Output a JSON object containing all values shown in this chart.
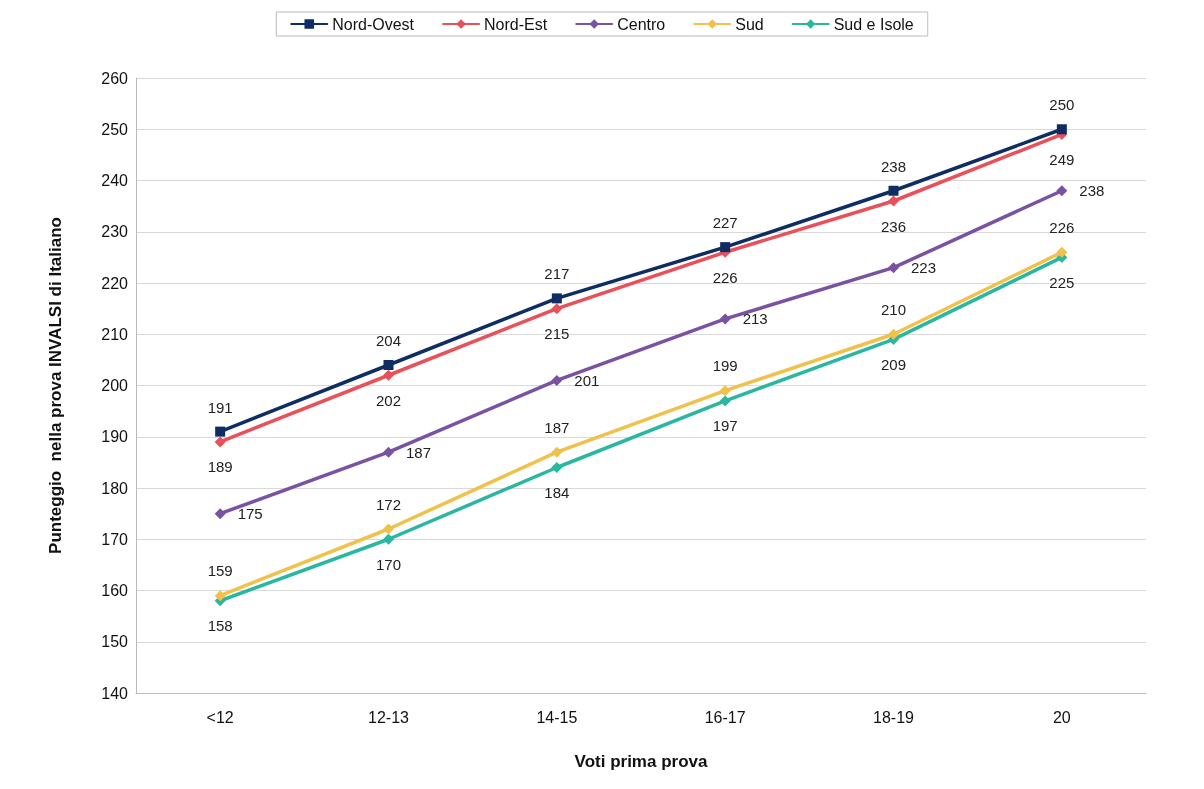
{
  "chart_data": {
    "type": "line",
    "xlabel": "Voti prima prova",
    "ylabel": "Punteggio  nella prova INVALSI di Italiano",
    "categories": [
      "<12",
      "12-13",
      "14-15",
      "16-17",
      "18-19",
      "20"
    ],
    "series": [
      {
        "name": "Nord-Ovest",
        "color": "#0e2d62",
        "marker": "square",
        "values": [
          191,
          204,
          217,
          227,
          238,
          250
        ]
      },
      {
        "name": "Nord-Est",
        "color": "#e8505b",
        "marker": "diamond",
        "values": [
          189,
          202,
          215,
          226,
          236,
          249
        ]
      },
      {
        "name": "Centro",
        "color": "#7a52a2",
        "marker": "diamond",
        "values": [
          175,
          187,
          201,
          213,
          223,
          238
        ]
      },
      {
        "name": "Sud",
        "color": "#f0c14b",
        "marker": "diamond",
        "values": [
          159,
          172,
          187,
          199,
          210,
          226
        ]
      },
      {
        "name": "Sud e Isole",
        "color": "#2ab7a2",
        "marker": "diamond",
        "values": [
          158,
          170,
          184,
          197,
          209,
          225
        ]
      }
    ],
    "ylim": [
      140,
      260
    ],
    "yticks": [
      140,
      150,
      160,
      170,
      180,
      190,
      200,
      210,
      220,
      230,
      240,
      250,
      260
    ],
    "grid": "y",
    "legend": "top",
    "data_labels": true,
    "line_style": "solid"
  }
}
